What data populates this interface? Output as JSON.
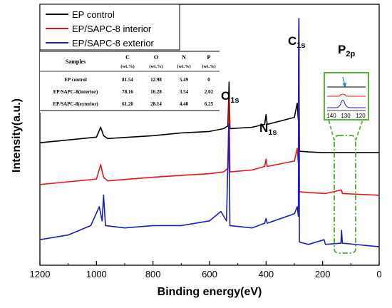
{
  "colors": {
    "ep_control": "#000000",
    "interior": "#e8141c",
    "exterior": "#1a20b8",
    "inset_border": "#5fb040"
  },
  "chart_data": {
    "type": "line",
    "xlabel": "Binding energy(eV)",
    "ylabel": "Intensity(a.u.)",
    "xlim": [
      1200,
      0
    ],
    "x_reversed": true,
    "x_ticks": [
      "1200",
      "1000",
      "800",
      "600",
      "400",
      "200",
      "0"
    ],
    "y_ticks_shown": false,
    "legend": {
      "position": "top-left",
      "entries": [
        "EP control",
        "EP/SAPC-8 interior",
        "EP/SAPC-8 exterior"
      ]
    },
    "series": [
      {
        "name": "EP control",
        "points": [
          [
            1200,
            0.12
          ],
          [
            1100,
            0.14
          ],
          [
            1000,
            0.16
          ],
          [
            985,
            0.23
          ],
          [
            975,
            0.17
          ],
          [
            960,
            0.15
          ],
          [
            800,
            0.17
          ],
          [
            700,
            0.19
          ],
          [
            600,
            0.2
          ],
          [
            550,
            0.22
          ],
          [
            535,
            0.24
          ],
          [
            531,
            0.55
          ],
          [
            528,
            0.22
          ],
          [
            450,
            0.23
          ],
          [
            405,
            0.25
          ],
          [
            400,
            0.32
          ],
          [
            396,
            0.25
          ],
          [
            300,
            0.3
          ],
          [
            290,
            0.4
          ],
          [
            286,
            0.28
          ],
          [
            284,
            1.0
          ],
          [
            282,
            0.06
          ],
          [
            250,
            0.055
          ],
          [
            200,
            0.05
          ],
          [
            150,
            0.05
          ],
          [
            0,
            0.05
          ]
        ]
      },
      {
        "name": "EP/SAPC-8 interior",
        "points": [
          [
            1200,
            0.08
          ],
          [
            1100,
            0.095
          ],
          [
            1000,
            0.11
          ],
          [
            985,
            0.19
          ],
          [
            975,
            0.12
          ],
          [
            960,
            0.1
          ],
          [
            800,
            0.12
          ],
          [
            700,
            0.13
          ],
          [
            600,
            0.14
          ],
          [
            550,
            0.15
          ],
          [
            535,
            0.17
          ],
          [
            531,
            0.55
          ],
          [
            528,
            0.15
          ],
          [
            450,
            0.16
          ],
          [
            405,
            0.18
          ],
          [
            400,
            0.22
          ],
          [
            396,
            0.18
          ],
          [
            300,
            0.21
          ],
          [
            290,
            0.28
          ],
          [
            286,
            0.2
          ],
          [
            284,
            1.0
          ],
          [
            282,
            0.04
          ],
          [
            250,
            0.035
          ],
          [
            190,
            0.03
          ],
          [
            133,
            0.05
          ],
          [
            130,
            0.03
          ],
          [
            0,
            0.02
          ]
        ]
      },
      {
        "name": "EP/SAPC-8 exterior",
        "points": [
          [
            1200,
            0.06
          ],
          [
            1100,
            0.08
          ],
          [
            1020,
            0.12
          ],
          [
            990,
            0.2
          ],
          [
            980,
            0.14
          ],
          [
            975,
            0.25
          ],
          [
            968,
            0.12
          ],
          [
            900,
            0.11
          ],
          [
            800,
            0.12
          ],
          [
            700,
            0.12
          ],
          [
            600,
            0.14
          ],
          [
            560,
            0.18
          ],
          [
            540,
            0.14
          ],
          [
            532,
            0.55
          ],
          [
            528,
            0.12
          ],
          [
            450,
            0.11
          ],
          [
            405,
            0.13
          ],
          [
            400,
            0.15
          ],
          [
            396,
            0.13
          ],
          [
            300,
            0.17
          ],
          [
            290,
            0.2
          ],
          [
            286,
            0.16
          ],
          [
            284,
            1.0
          ],
          [
            282,
            0.05
          ],
          [
            250,
            0.04
          ],
          [
            195,
            0.06
          ],
          [
            190,
            0.04
          ],
          [
            135,
            0.045
          ],
          [
            133,
            0.1
          ],
          [
            130,
            0.045
          ],
          [
            0,
            0.03
          ]
        ]
      }
    ],
    "annotations": {
      "o1s": {
        "main": "O",
        "sub": "1s"
      },
      "n1s": {
        "main": "N",
        "sub": "1s"
      },
      "c1s": {
        "main": "C",
        "sub": "1s"
      },
      "p2p": {
        "main": "P",
        "sub": "2p"
      }
    },
    "table": {
      "headers": [
        "Samples",
        "C",
        "O",
        "N",
        "P"
      ],
      "units": [
        "(wt.%)",
        "(wt.%)",
        "(wt.%)",
        "(wt.%)"
      ],
      "rows": [
        [
          "EP control",
          "81.54",
          "12.98",
          "5.49",
          "0"
        ],
        [
          "EP/SAPC-8(interior)",
          "78.16",
          "16.28",
          "3.54",
          "2.02"
        ],
        [
          "EP/SAPC-8(exterior)",
          "61.20",
          "28.14",
          "4.40",
          "6.25"
        ]
      ]
    },
    "inset": {
      "x_ticks": [
        "140",
        "130",
        "120"
      ]
    }
  }
}
